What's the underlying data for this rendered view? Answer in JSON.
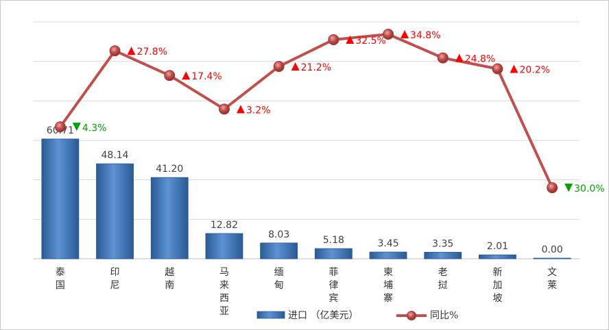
{
  "chart_data": {
    "type": "bar",
    "categories": [
      "泰国",
      "印尼",
      "越南",
      "马来西亚",
      "缅甸",
      "菲律宾",
      "柬埔寨",
      "老挝",
      "新加坡",
      "文莱"
    ],
    "series": [
      {
        "name": "进口 （亿美元）",
        "type": "bar",
        "axis": "left",
        "values": [
          60.71,
          48.14,
          41.2,
          12.82,
          8.03,
          5.18,
          3.45,
          3.35,
          2.01,
          0.0
        ],
        "labels": [
          "60.71",
          "48.14",
          "41.20",
          "12.82",
          "8.03",
          "5.18",
          "3.45",
          "3.35",
          "2.01",
          "0.00"
        ]
      },
      {
        "name": "同比%",
        "type": "line",
        "axis": "right",
        "values": [
          -4.3,
          27.8,
          17.4,
          3.2,
          21.2,
          32.5,
          34.8,
          24.8,
          20.2,
          -30.0
        ],
        "labels": [
          "4.3%",
          "27.8%",
          "17.4%",
          "3.2%",
          "21.2%",
          "32.5%",
          "34.8%",
          "24.8%",
          "20.2%",
          "30.0%"
        ],
        "directions": [
          "down",
          "up",
          "up",
          "up",
          "up",
          "up",
          "up",
          "up",
          "up",
          "down"
        ]
      }
    ],
    "left_axis_range": [
      0,
      120
    ],
    "right_axis_range": [
      -60,
      40
    ],
    "grid": true,
    "legend_position": "bottom",
    "colors": {
      "bar": "#4a7ec0",
      "bar_dark": "#2a5a94",
      "line": "#c0504d",
      "marker": "#c0504d",
      "up": "#ff0000",
      "down": "#00a000",
      "grid": "#d9d9d9"
    }
  }
}
